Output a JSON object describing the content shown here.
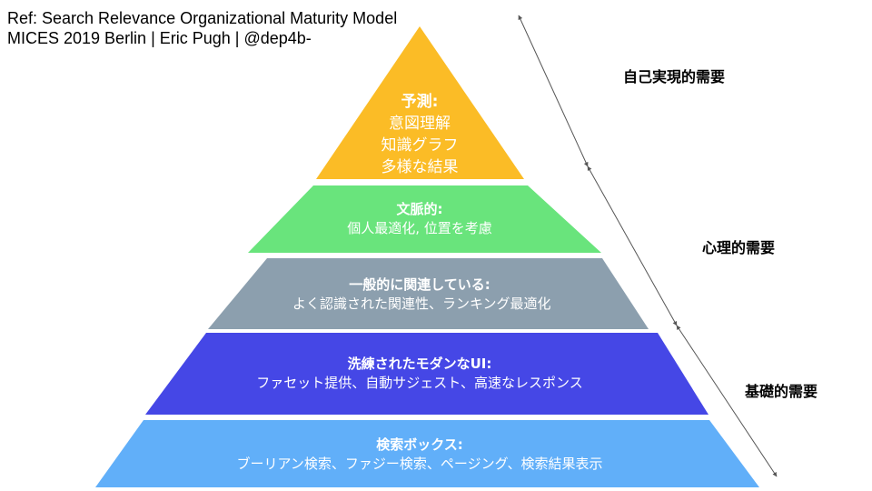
{
  "reference": {
    "line1": "Ref: Search Relevance Organizational Maturity Model",
    "line2": "MICES 2019 Berlin | Eric Pugh | @dep4b-"
  },
  "layers": [
    {
      "title": "予測:",
      "lines": [
        "意図理解",
        "知識グラフ",
        "多様な結果"
      ],
      "color": "#FBBC26"
    },
    {
      "title": "文脈的:",
      "lines": [
        "個人最適化, 位置を考慮"
      ],
      "color": "#69E47C"
    },
    {
      "title": "一般的に関連している:",
      "lines": [
        "よく認識された関連性、ランキング最適化"
      ],
      "color": "#8C9FAE"
    },
    {
      "title": "洗練されたモダンなUI:",
      "lines": [
        "ファセット提供、自動サジェスト、高速なレスポンス"
      ],
      "color": "#4547E6"
    },
    {
      "title": "検索ボックス:",
      "lines": [
        "ブーリアン検索、ファジー検索、ページング、検索結果表示"
      ],
      "color": "#61AFF9"
    }
  ],
  "needs": {
    "self_actualization": "自己実現的需要",
    "psychological": "心理的需要",
    "basic": "基礎的需要"
  }
}
